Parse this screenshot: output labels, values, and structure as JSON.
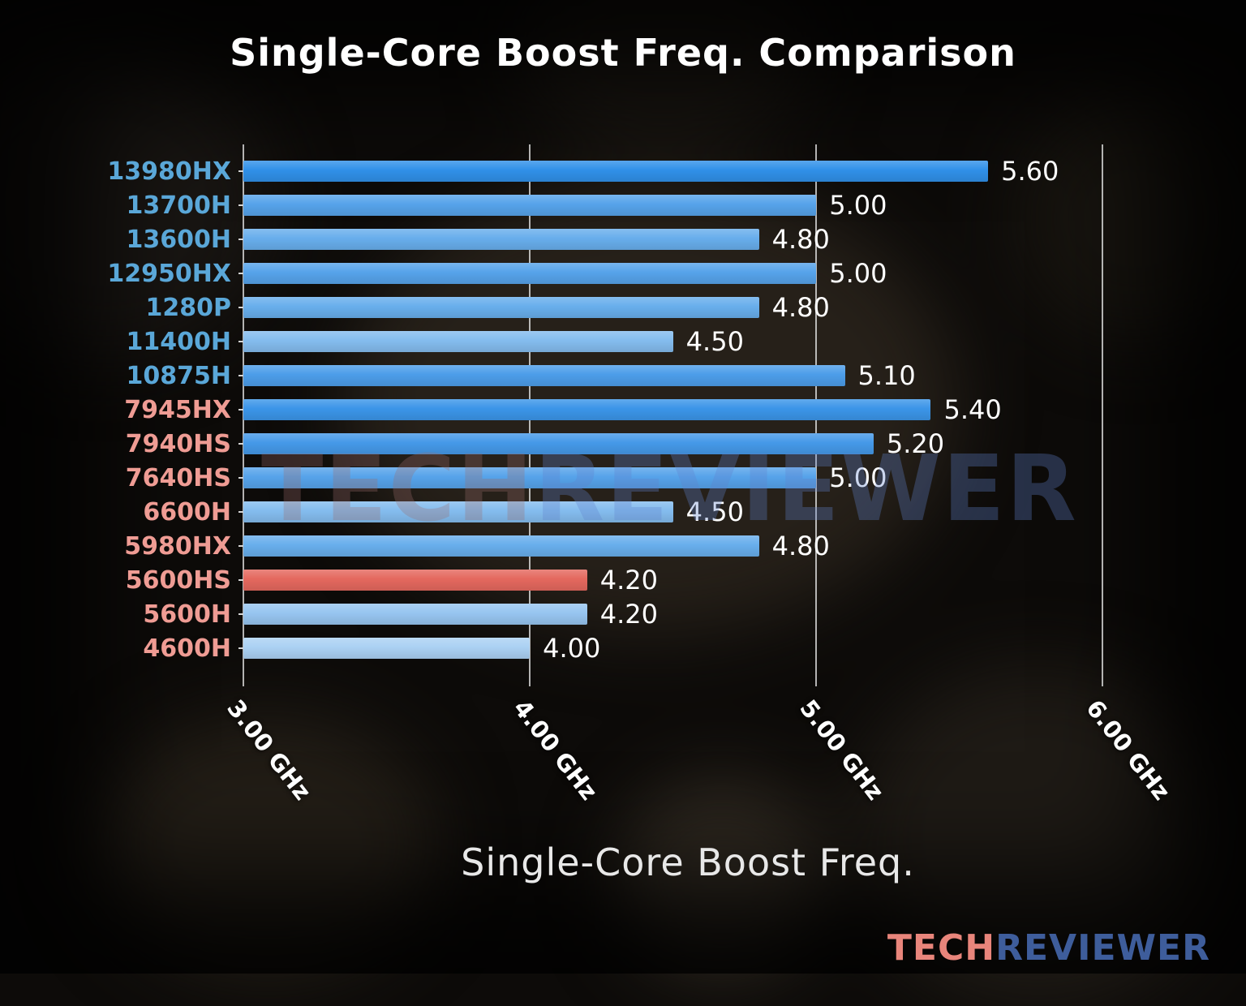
{
  "title": "Single-Core Boost Freq. Comparison",
  "watermark": {
    "part1": "TECH",
    "part2": "REVIEWER"
  },
  "logo": {
    "part1": "TECH",
    "part2": "REVIEWER"
  },
  "colors": {
    "intel_label": "#5aa7d8",
    "amd_label": "#ef9c94",
    "grid": "#ebebeb",
    "title": "#ffffff",
    "value_label": "#ffffff",
    "highlight_bar": "#e4685e",
    "watermark_tech": "rgba(155,110,110,0.30)",
    "watermark_reviewer": "rgba(95,130,205,0.32)",
    "logo_tech": "#e8857b",
    "logo_reviewer": "#3e5d9b"
  },
  "chart_data": {
    "type": "bar",
    "orientation": "horizontal",
    "title": "Single-Core Boost Freq. Comparison",
    "xlabel": "Single-Core Boost Freq.",
    "x_range": [
      3.0,
      6.37
    ],
    "x_ticks": [
      {
        "value": 3.0,
        "label": "3.00 GHz"
      },
      {
        "value": 4.0,
        "label": "4.00 GHz"
      },
      {
        "value": 5.0,
        "label": "5.00 GHz"
      },
      {
        "value": 6.0,
        "label": "6.00 GHz"
      }
    ],
    "grid": true,
    "legend": "none",
    "bars": [
      {
        "label": "13980HX",
        "value": 5.6,
        "value_label": "5.60",
        "brand": "intel",
        "color": "#3090e8"
      },
      {
        "label": "13700H",
        "value": 5.0,
        "value_label": "5.00",
        "brand": "intel",
        "color": "#56a3ea"
      },
      {
        "label": "13600H",
        "value": 4.8,
        "value_label": "4.80",
        "brand": "intel",
        "color": "#68aeec"
      },
      {
        "label": "12950HX",
        "value": 5.0,
        "value_label": "5.00",
        "brand": "intel",
        "color": "#56a3ea"
      },
      {
        "label": "1280P",
        "value": 4.8,
        "value_label": "4.80",
        "brand": "intel",
        "color": "#68aeec"
      },
      {
        "label": "11400H",
        "value": 4.5,
        "value_label": "4.50",
        "brand": "intel",
        "color": "#84bcee"
      },
      {
        "label": "10875H",
        "value": 5.1,
        "value_label": "5.10",
        "brand": "intel",
        "color": "#4c9de9"
      },
      {
        "label": "7945HX",
        "value": 5.4,
        "value_label": "5.40",
        "brand": "amd",
        "color": "#3b95e8"
      },
      {
        "label": "7940HS",
        "value": 5.2,
        "value_label": "5.20",
        "brand": "amd",
        "color": "#4599e8"
      },
      {
        "label": "7640HS",
        "value": 5.0,
        "value_label": "5.00",
        "brand": "amd",
        "color": "#56a3ea"
      },
      {
        "label": "6600H",
        "value": 4.5,
        "value_label": "4.50",
        "brand": "amd",
        "color": "#84bcee"
      },
      {
        "label": "5980HX",
        "value": 4.8,
        "value_label": "4.80",
        "brand": "amd",
        "color": "#68aeec"
      },
      {
        "label": "5600HS",
        "value": 4.2,
        "value_label": "4.20",
        "brand": "amd",
        "color": "#e4685e"
      },
      {
        "label": "5600H",
        "value": 4.2,
        "value_label": "4.20",
        "brand": "amd",
        "color": "#97c5f0"
      },
      {
        "label": "4600H",
        "value": 4.0,
        "value_label": "4.00",
        "brand": "amd",
        "color": "#abd1f3"
      }
    ]
  }
}
